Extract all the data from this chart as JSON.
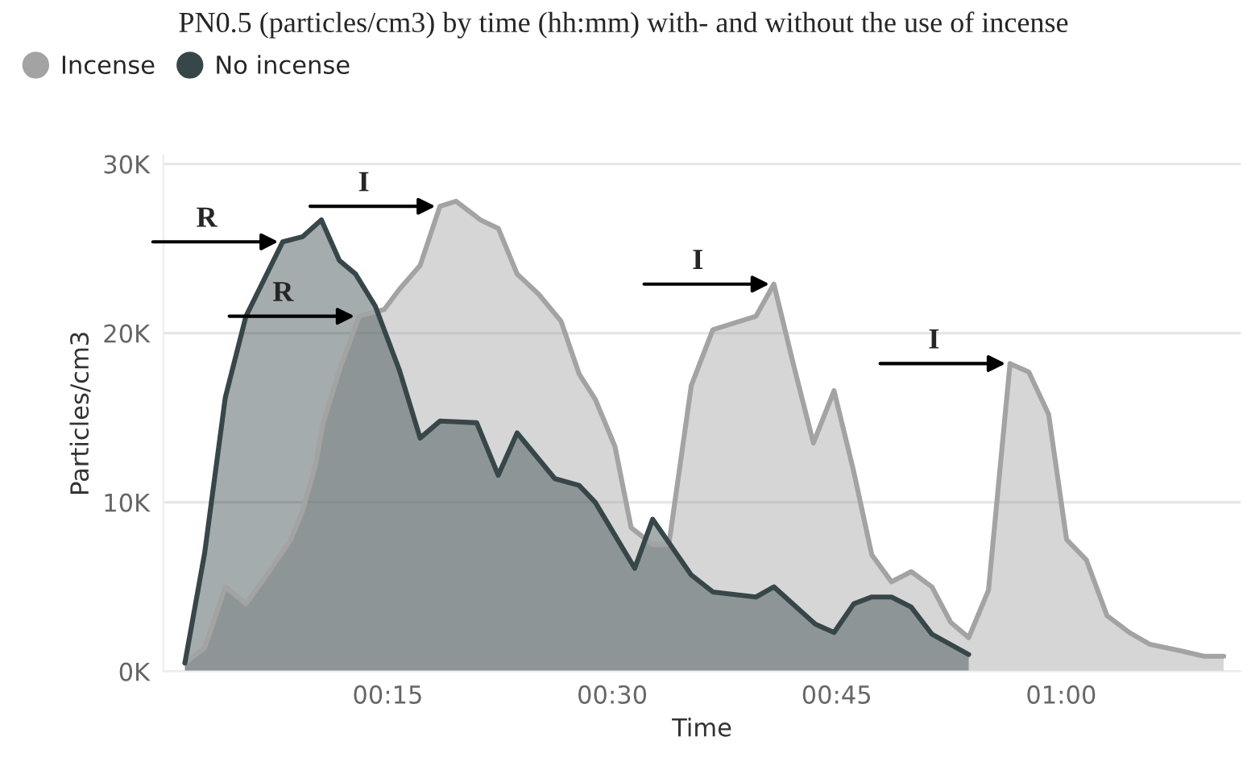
{
  "chart_data": {
    "type": "area",
    "title": "PN0.5 (particles/cm3) by time (hh:mm) with- and without the use of incense",
    "xlabel": "Time",
    "ylabel": "Particles/cm3",
    "legend": "top left",
    "grid": "y",
    "marker": "none",
    "line_style": "solid",
    "xlim": [
      0.0,
      1.2
    ],
    "xticks": [
      {
        "value": 0.25,
        "label": "00:15"
      },
      {
        "value": 0.5,
        "label": "00:30"
      },
      {
        "value": 0.75,
        "label": "00:45"
      },
      {
        "value": 1.0,
        "label": "01:00"
      }
    ],
    "ylim": [
      0,
      30500
    ],
    "yticks": [
      {
        "value": 0,
        "label": "0K"
      },
      {
        "value": 10000,
        "label": "10K"
      },
      {
        "value": 20000,
        "label": "20K"
      },
      {
        "value": 30000,
        "label": "30K"
      }
    ],
    "series": [
      {
        "name": "Incense",
        "color": "#a3a3a3",
        "x": [
          0.024,
          0.046,
          0.069,
          0.092,
          0.115,
          0.142,
          0.155,
          0.169,
          0.178,
          0.196,
          0.218,
          0.246,
          0.263,
          0.286,
          0.308,
          0.326,
          0.353,
          0.373,
          0.394,
          0.418,
          0.443,
          0.463,
          0.481,
          0.503,
          0.521,
          0.545,
          0.563,
          0.588,
          0.612,
          0.66,
          0.68,
          0.702,
          0.724,
          0.747,
          0.769,
          0.789,
          0.811,
          0.833,
          0.856,
          0.877,
          0.897,
          0.919,
          0.943,
          0.964,
          0.986,
          1.006,
          1.028,
          1.051,
          1.076,
          1.099,
          1.135,
          1.159,
          1.181
        ],
        "values": [
          500,
          1400,
          5000,
          4000,
          5700,
          7800,
          9500,
          12100,
          14700,
          17800,
          21000,
          21400,
          22600,
          24000,
          27500,
          27800,
          26700,
          26200,
          23500,
          22300,
          20700,
          17600,
          16100,
          13300,
          8500,
          7500,
          7500,
          16900,
          20200,
          21000,
          22900,
          18100,
          13500,
          16600,
          11800,
          6900,
          5300,
          5900,
          5000,
          2900,
          2000,
          4800,
          18200,
          17700,
          15200,
          7800,
          6600,
          3300,
          2300,
          1600,
          1200,
          900,
          900
        ]
      },
      {
        "name": "No incense",
        "color": "#374649",
        "x": [
          0.024,
          0.046,
          0.069,
          0.092,
          0.133,
          0.155,
          0.176,
          0.196,
          0.214,
          0.236,
          0.263,
          0.286,
          0.308,
          0.349,
          0.373,
          0.394,
          0.436,
          0.463,
          0.481,
          0.525,
          0.545,
          0.588,
          0.612,
          0.66,
          0.68,
          0.726,
          0.747,
          0.769,
          0.789,
          0.811,
          0.833,
          0.856,
          0.897
        ],
        "values": [
          500,
          7000,
          16200,
          21000,
          25400,
          25700,
          26700,
          24300,
          23500,
          21600,
          17800,
          13800,
          14800,
          14700,
          11600,
          14100,
          11400,
          11000,
          10000,
          6100,
          9000,
          5700,
          4700,
          4400,
          5000,
          2800,
          2300,
          4000,
          4400,
          4400,
          3800,
          2200,
          1000
        ]
      }
    ],
    "annotations": [
      {
        "text": "R",
        "x": 0.133,
        "y": 25400
      },
      {
        "text": "I",
        "x": 0.308,
        "y": 27500
      },
      {
        "text": "R",
        "x": 0.218,
        "y": 21000
      },
      {
        "text": "I",
        "x": 0.68,
        "y": 22900
      },
      {
        "text": "I",
        "x": 0.943,
        "y": 18200
      }
    ]
  }
}
